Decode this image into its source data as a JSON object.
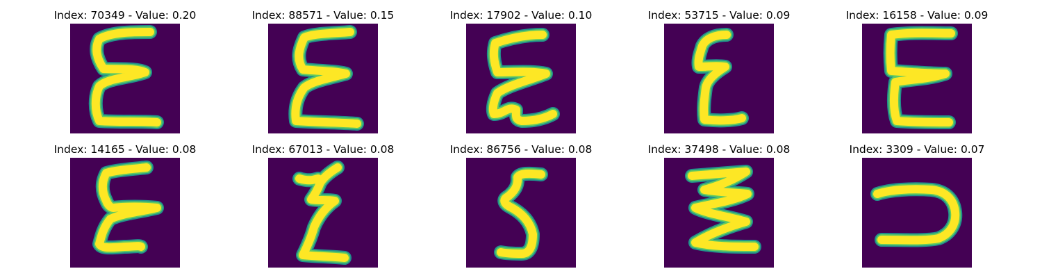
{
  "panels": [
    {
      "title": "Index: 70349 - Value: 0.20",
      "glyph": "epsilon-a"
    },
    {
      "title": "Index: 88571 - Value: 0.15",
      "glyph": "epsilon-b"
    },
    {
      "title": "Index: 17902 - Value: 0.10",
      "glyph": "epsilon-c"
    },
    {
      "title": "Index: 53715 - Value: 0.09",
      "glyph": "epsilon-d"
    },
    {
      "title": "Index: 16158 - Value: 0.09",
      "glyph": "e-block"
    },
    {
      "title": "Index: 14165 - Value: 0.08",
      "glyph": "epsilon-e"
    },
    {
      "title": "Index: 67013 - Value: 0.08",
      "glyph": "epsilon-f"
    },
    {
      "title": "Index: 86756 - Value: 0.08",
      "glyph": "five"
    },
    {
      "title": "Index: 37498 - Value: 0.08",
      "glyph": "zigzag"
    },
    {
      "title": "Index: 3309 - Value: 0.07",
      "glyph": "hook"
    }
  ],
  "colors": {
    "background": "#440154",
    "edge": "#21918c",
    "mid": "#5ec962",
    "stroke": "#fde725"
  }
}
